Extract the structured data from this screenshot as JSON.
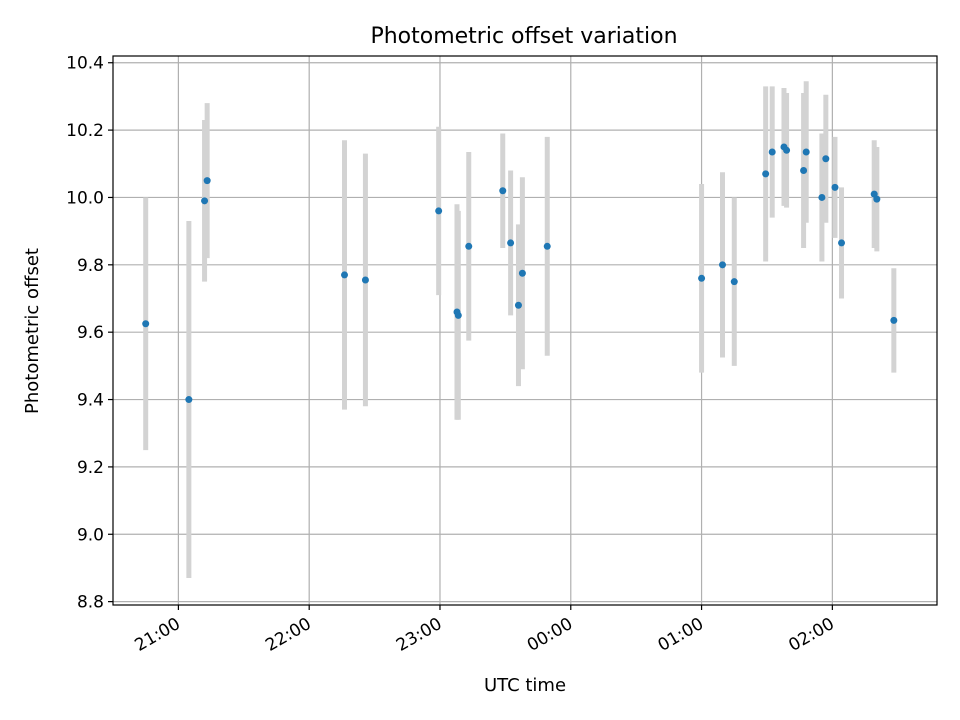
{
  "chart_data": {
    "type": "scatter",
    "title": "Photometric offset variation",
    "xlabel": "UTC time",
    "ylabel": "Photometric offset",
    "x_unit": "UTC time (hours past 00:00 on first night; >24 = next day)",
    "xlim": [
      20.5,
      26.8
    ],
    "ylim": [
      8.79,
      10.42
    ],
    "x_ticks": [
      21,
      22,
      23,
      24,
      25,
      26
    ],
    "x_tick_labels": [
      "21:00",
      "22:00",
      "23:00",
      "00:00",
      "01:00",
      "02:00"
    ],
    "y_ticks": [
      8.8,
      9.0,
      9.2,
      9.4,
      9.6,
      9.8,
      10.0,
      10.2,
      10.4
    ],
    "y_tick_labels": [
      "8.8",
      "9.0",
      "9.2",
      "9.4",
      "9.6",
      "9.8",
      "10.0",
      "10.2",
      "10.4"
    ],
    "grid": true,
    "colors": {
      "point": "#1f77b4",
      "errorbar": "#d3d3d3",
      "grid": "#b0b0b0"
    },
    "series": [
      {
        "points": [
          {
            "x": 20.75,
            "y": 9.625,
            "err": 0.375
          },
          {
            "x": 21.08,
            "y": 9.4,
            "err": 0.53
          },
          {
            "x": 21.2,
            "y": 9.99,
            "err": 0.24
          },
          {
            "x": 21.22,
            "y": 10.05,
            "err": 0.23
          },
          {
            "x": 22.27,
            "y": 9.77,
            "err": 0.4
          },
          {
            "x": 22.43,
            "y": 9.755,
            "err": 0.375
          },
          {
            "x": 22.99,
            "y": 9.96,
            "err": 0.25
          },
          {
            "x": 23.13,
            "y": 9.66,
            "err": 0.32
          },
          {
            "x": 23.14,
            "y": 9.65,
            "err": 0.31
          },
          {
            "x": 23.22,
            "y": 9.855,
            "err": 0.28
          },
          {
            "x": 23.48,
            "y": 10.02,
            "err": 0.17
          },
          {
            "x": 23.54,
            "y": 9.865,
            "err": 0.215
          },
          {
            "x": 23.6,
            "y": 9.68,
            "err": 0.24
          },
          {
            "x": 23.63,
            "y": 9.775,
            "err": 0.285
          },
          {
            "x": 23.82,
            "y": 9.855,
            "err": 0.325
          },
          {
            "x": 25.0,
            "y": 9.76,
            "err": 0.28
          },
          {
            "x": 25.16,
            "y": 9.8,
            "err": 0.275
          },
          {
            "x": 25.25,
            "y": 9.75,
            "err": 0.25
          },
          {
            "x": 25.49,
            "y": 10.07,
            "err": 0.26
          },
          {
            "x": 25.54,
            "y": 10.135,
            "err": 0.195
          },
          {
            "x": 25.63,
            "y": 10.15,
            "err": 0.175
          },
          {
            "x": 25.65,
            "y": 10.14,
            "err": 0.17
          },
          {
            "x": 25.78,
            "y": 10.08,
            "err": 0.23
          },
          {
            "x": 25.8,
            "y": 10.135,
            "err": 0.21
          },
          {
            "x": 25.92,
            "y": 10.0,
            "err": 0.19
          },
          {
            "x": 25.95,
            "y": 10.115,
            "err": 0.19
          },
          {
            "x": 26.02,
            "y": 10.03,
            "err": 0.15
          },
          {
            "x": 26.07,
            "y": 9.865,
            "err": 0.165
          },
          {
            "x": 26.32,
            "y": 10.01,
            "err": 0.16
          },
          {
            "x": 26.34,
            "y": 9.995,
            "err": 0.155
          },
          {
            "x": 26.47,
            "y": 9.635,
            "err": 0.155
          }
        ]
      }
    ]
  }
}
